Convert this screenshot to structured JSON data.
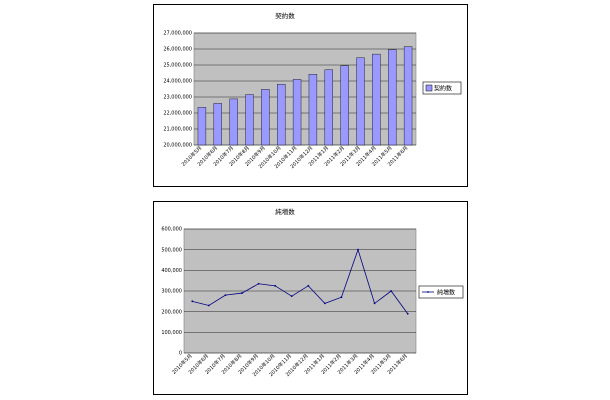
{
  "chart_data": [
    {
      "type": "bar",
      "title": "契約数",
      "categories": [
        "2010年5月",
        "2010年6月",
        "2010年7月",
        "2010年8月",
        "2010年9月",
        "2010年10月",
        "2010年11月",
        "2010年12月",
        "2011年1月",
        "2011年2月",
        "2011年3月",
        "2011年4月",
        "2011年5月",
        "2011年6月"
      ],
      "series": [
        {
          "name": "契約数",
          "values": [
            22350000,
            22600000,
            22880000,
            23150000,
            23480000,
            23800000,
            24100000,
            24420000,
            24700000,
            24950000,
            25450000,
            25680000,
            25960000,
            26150000
          ]
        }
      ],
      "ylim": [
        20000000,
        27000000
      ],
      "yticks": [
        20000000,
        21000000,
        22000000,
        23000000,
        24000000,
        25000000,
        26000000,
        27000000
      ],
      "ytick_labels": [
        "20,000,000",
        "21,000,000",
        "22,000,000",
        "23,000,000",
        "24,000,000",
        "25,000,000",
        "26,000,000",
        "27,000,000"
      ],
      "grid": true,
      "legend": "right",
      "colors": {
        "bar": "#9999ff",
        "plot_bg": "#c0c0c0",
        "bar_edge": "#000000"
      }
    },
    {
      "type": "line",
      "title": "純増数",
      "categories": [
        "2010年5月",
        "2010年6月",
        "2010年7月",
        "2010年8月",
        "2010年9月",
        "2010年10月",
        "2010年11月",
        "2010年12月",
        "2011年1月",
        "2011年2月",
        "2011年3月",
        "2011年4月",
        "2011年5月",
        "2011年6月"
      ],
      "series": [
        {
          "name": "純増数",
          "values": [
            250000,
            230000,
            280000,
            290000,
            335000,
            325000,
            275000,
            325000,
            240000,
            270000,
            500000,
            240000,
            300000,
            190000
          ]
        }
      ],
      "ylim": [
        0,
        600000
      ],
      "yticks": [
        0,
        100000,
        200000,
        300000,
        400000,
        500000,
        600000
      ],
      "ytick_labels": [
        "0",
        "100,000",
        "200,000",
        "300,000",
        "400,000",
        "500,000",
        "600,000"
      ],
      "grid": true,
      "legend": "right",
      "colors": {
        "line": "#000080",
        "plot_bg": "#c0c0c0"
      }
    }
  ]
}
